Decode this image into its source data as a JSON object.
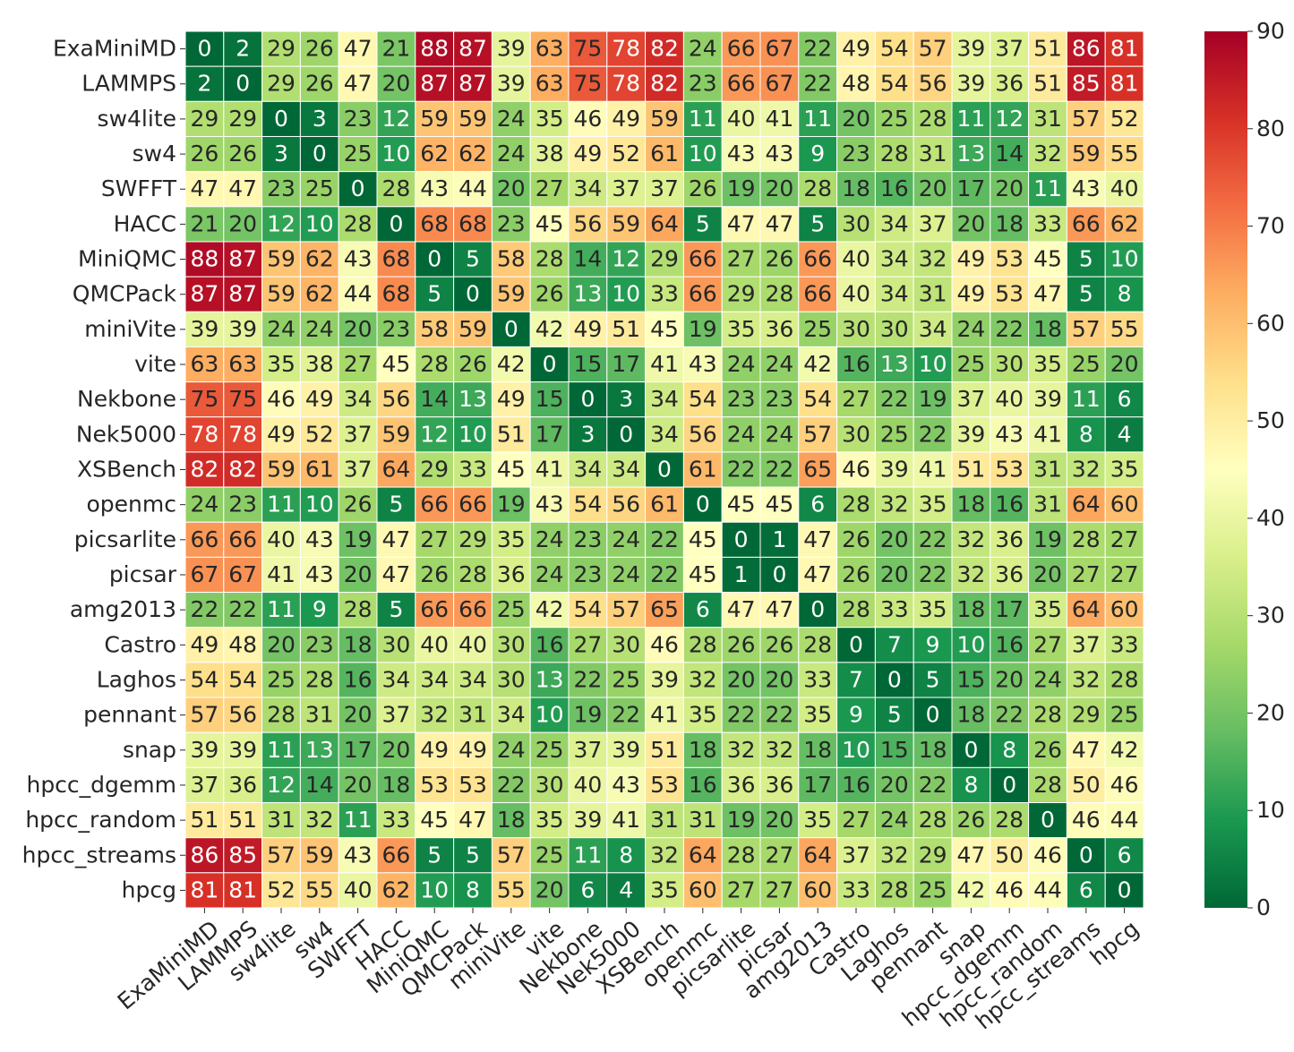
{
  "chart_data": {
    "type": "heatmap",
    "title": "",
    "xlabel": "",
    "ylabel": "",
    "colormap": "RdYlGn_r",
    "vmin": 0,
    "vmax": 90,
    "colorbar_ticks": [
      "0",
      "10",
      "20",
      "30",
      "40",
      "50",
      "60",
      "70",
      "80",
      "90"
    ],
    "colorbar_stops": [
      "#006837",
      "#1a9850",
      "#66bd63",
      "#a6d96a",
      "#d9ef8b",
      "#ffffbf",
      "#fee08b",
      "#fdae61",
      "#f46d43",
      "#d73027",
      "#a50026"
    ],
    "grid_color": "#ffffff",
    "labels": [
      "ExaMiniMD",
      "LAMMPS",
      "sw4lite",
      "sw4",
      "SWFFT",
      "HACC",
      "MiniQMC",
      "QMCPack",
      "miniVite",
      "vite",
      "Nekbone",
      "Nek5000",
      "XSBench",
      "openmc",
      "picsarlite",
      "picsar",
      "amg2013",
      "Castro",
      "Laghos",
      "pennant",
      "snap",
      "hpcc_dgemm",
      "hpcc_random",
      "hpcc_streams",
      "hpcg"
    ],
    "values": [
      [
        0,
        2,
        29,
        26,
        47,
        21,
        88,
        87,
        39,
        63,
        75,
        78,
        82,
        24,
        66,
        67,
        22,
        49,
        54,
        57,
        39,
        37,
        51,
        86,
        81
      ],
      [
        2,
        0,
        29,
        26,
        47,
        20,
        87,
        87,
        39,
        63,
        75,
        78,
        82,
        23,
        66,
        67,
        22,
        48,
        54,
        56,
        39,
        36,
        51,
        85,
        81
      ],
      [
        29,
        29,
        0,
        3,
        23,
        12,
        59,
        59,
        24,
        35,
        46,
        49,
        59,
        11,
        40,
        41,
        11,
        20,
        25,
        28,
        11,
        12,
        31,
        57,
        52
      ],
      [
        26,
        26,
        3,
        0,
        25,
        10,
        62,
        62,
        24,
        38,
        49,
        52,
        61,
        10,
        43,
        43,
        9,
        23,
        28,
        31,
        13,
        14,
        32,
        59,
        55
      ],
      [
        47,
        47,
        23,
        25,
        0,
        28,
        43,
        44,
        20,
        27,
        34,
        37,
        37,
        26,
        19,
        20,
        28,
        18,
        16,
        20,
        17,
        20,
        11,
        43,
        40
      ],
      [
        21,
        20,
        12,
        10,
        28,
        0,
        68,
        68,
        23,
        45,
        56,
        59,
        64,
        5,
        47,
        47,
        5,
        30,
        34,
        37,
        20,
        18,
        33,
        66,
        62
      ],
      [
        88,
        87,
        59,
        62,
        43,
        68,
        0,
        5,
        58,
        28,
        14,
        12,
        29,
        66,
        27,
        26,
        66,
        40,
        34,
        32,
        49,
        53,
        45,
        5,
        10
      ],
      [
        87,
        87,
        59,
        62,
        44,
        68,
        5,
        0,
        59,
        26,
        13,
        10,
        33,
        66,
        29,
        28,
        66,
        40,
        34,
        31,
        49,
        53,
        47,
        5,
        8
      ],
      [
        39,
        39,
        24,
        24,
        20,
        23,
        58,
        59,
        0,
        42,
        49,
        51,
        45,
        19,
        35,
        36,
        25,
        30,
        30,
        34,
        24,
        22,
        18,
        57,
        55
      ],
      [
        63,
        63,
        35,
        38,
        27,
        45,
        28,
        26,
        42,
        0,
        15,
        17,
        41,
        43,
        24,
        24,
        42,
        16,
        13,
        10,
        25,
        30,
        35,
        25,
        20
      ],
      [
        75,
        75,
        46,
        49,
        34,
        56,
        14,
        13,
        49,
        15,
        0,
        3,
        34,
        54,
        23,
        23,
        54,
        27,
        22,
        19,
        37,
        40,
        39,
        11,
        6
      ],
      [
        78,
        78,
        49,
        52,
        37,
        59,
        12,
        10,
        51,
        17,
        3,
        0,
        34,
        56,
        24,
        24,
        57,
        30,
        25,
        22,
        39,
        43,
        41,
        8,
        4
      ],
      [
        82,
        82,
        59,
        61,
        37,
        64,
        29,
        33,
        45,
        41,
        34,
        34,
        0,
        61,
        22,
        22,
        65,
        46,
        39,
        41,
        51,
        53,
        31,
        32,
        35
      ],
      [
        24,
        23,
        11,
        10,
        26,
        5,
        66,
        66,
        19,
        43,
        54,
        56,
        61,
        0,
        45,
        45,
        6,
        28,
        32,
        35,
        18,
        16,
        31,
        64,
        60
      ],
      [
        66,
        66,
        40,
        43,
        19,
        47,
        27,
        29,
        35,
        24,
        23,
        24,
        22,
        45,
        0,
        1,
        47,
        26,
        20,
        22,
        32,
        36,
        19,
        28,
        27
      ],
      [
        67,
        67,
        41,
        43,
        20,
        47,
        26,
        28,
        36,
        24,
        23,
        24,
        22,
        45,
        1,
        0,
        47,
        26,
        20,
        22,
        32,
        36,
        20,
        27,
        27
      ],
      [
        22,
        22,
        11,
        9,
        28,
        5,
        66,
        66,
        25,
        42,
        54,
        57,
        65,
        6,
        47,
        47,
        0,
        28,
        33,
        35,
        18,
        17,
        35,
        64,
        60
      ],
      [
        49,
        48,
        20,
        23,
        18,
        30,
        40,
        40,
        30,
        16,
        27,
        30,
        46,
        28,
        26,
        26,
        28,
        0,
        7,
        9,
        10,
        16,
        27,
        37,
        33
      ],
      [
        54,
        54,
        25,
        28,
        16,
        34,
        34,
        34,
        30,
        13,
        22,
        25,
        39,
        32,
        20,
        20,
        33,
        7,
        0,
        5,
        15,
        20,
        24,
        32,
        28
      ],
      [
        57,
        56,
        28,
        31,
        20,
        37,
        32,
        31,
        34,
        10,
        19,
        22,
        41,
        35,
        22,
        22,
        35,
        9,
        5,
        0,
        18,
        22,
        28,
        29,
        25
      ],
      [
        39,
        39,
        11,
        13,
        17,
        20,
        49,
        49,
        24,
        25,
        37,
        39,
        51,
        18,
        32,
        32,
        18,
        10,
        15,
        18,
        0,
        8,
        26,
        47,
        42
      ],
      [
        37,
        36,
        12,
        14,
        20,
        18,
        53,
        53,
        22,
        30,
        40,
        43,
        53,
        16,
        36,
        36,
        17,
        16,
        20,
        22,
        8,
        0,
        28,
        50,
        46
      ],
      [
        51,
        51,
        31,
        32,
        11,
        33,
        45,
        47,
        18,
        35,
        39,
        41,
        31,
        31,
        19,
        20,
        35,
        27,
        24,
        28,
        26,
        28,
        0,
        46,
        44
      ],
      [
        86,
        85,
        57,
        59,
        43,
        66,
        5,
        5,
        57,
        25,
        11,
        8,
        32,
        64,
        28,
        27,
        64,
        37,
        32,
        29,
        47,
        50,
        46,
        0,
        6
      ],
      [
        81,
        81,
        52,
        55,
        40,
        62,
        10,
        8,
        55,
        20,
        6,
        4,
        35,
        60,
        27,
        27,
        60,
        33,
        28,
        25,
        42,
        46,
        44,
        6,
        0
      ]
    ]
  }
}
